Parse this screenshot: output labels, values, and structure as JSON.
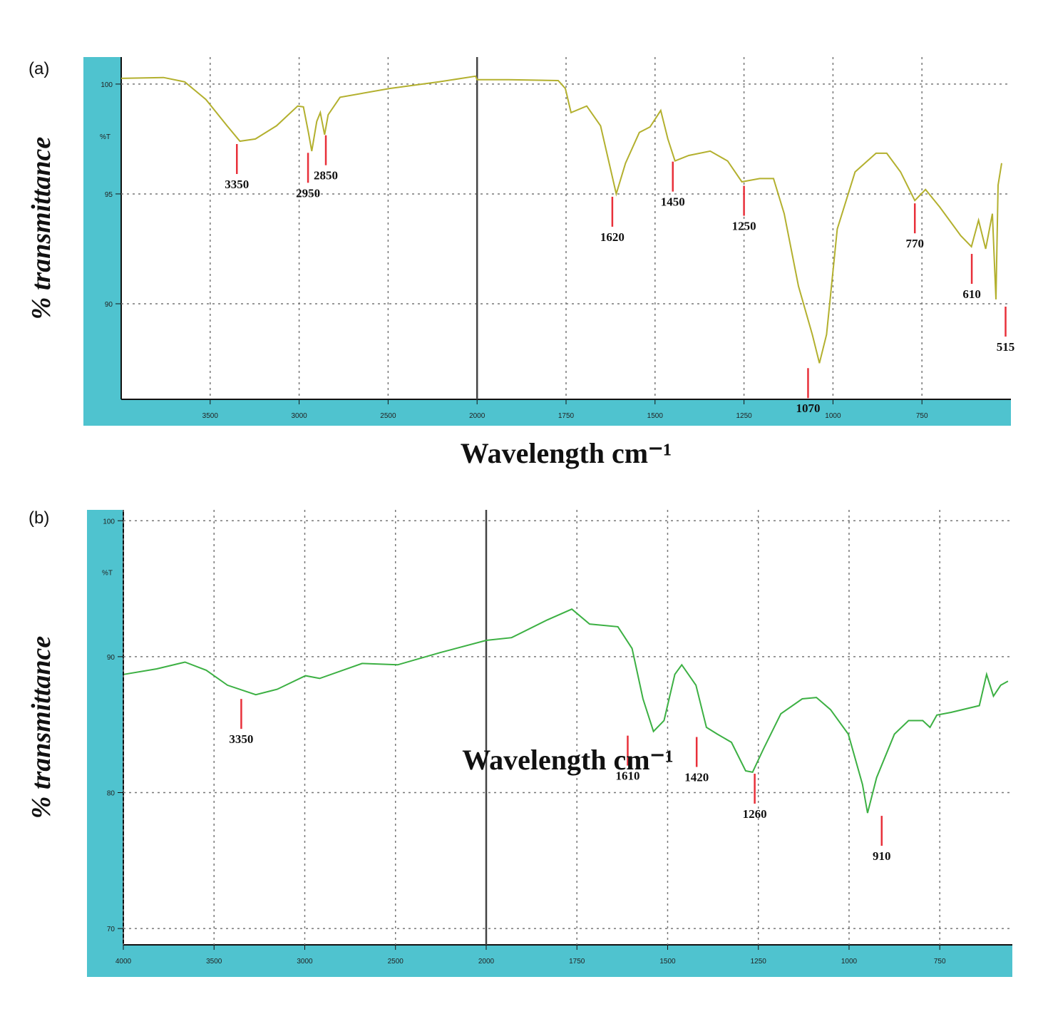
{
  "chart_data": [
    {
      "type": "line",
      "panel_label": "(a)",
      "y_label": "% transmittance",
      "x_label": "Wavelength cm⁻¹",
      "y_unit_label": "%T",
      "x": [
        4000,
        3762,
        3643,
        3524,
        3405,
        3333,
        3246,
        3127,
        3008,
        2976,
        2948,
        2929,
        2901,
        2881,
        2857,
        2837,
        2770,
        2492,
        2214,
        2008,
        2000,
        1911,
        1772,
        1752,
        1736,
        1692,
        1653,
        1609,
        1583,
        1544,
        1514,
        1484,
        1464,
        1444,
        1405,
        1345,
        1296,
        1256,
        1206,
        1167,
        1137,
        1097,
        1058,
        1038,
        1018,
        988,
        938,
        879,
        849,
        810,
        770,
        740,
        700,
        641,
        611,
        591,
        571,
        552,
        542,
        536,
        526
      ],
      "series": [
        {
          "color": "#b3b02e",
          "values": [
            100.26,
            100.3,
            100.1,
            99.3,
            98.1,
            97.4,
            97.5,
            98.1,
            99.0,
            98.96,
            97.8,
            96.95,
            98.3,
            98.7,
            97.7,
            98.6,
            99.4,
            99.8,
            100.1,
            100.36,
            100.2,
            100.2,
            100.16,
            99.8,
            98.7,
            99.0,
            98.1,
            95.0,
            96.4,
            97.8,
            98.05,
            98.8,
            97.5,
            96.5,
            96.75,
            96.95,
            96.5,
            95.55,
            95.7,
            95.7,
            94.1,
            90.8,
            88.6,
            87.3,
            88.6,
            93.4,
            96.0,
            96.85,
            96.85,
            96.0,
            94.7,
            95.2,
            94.4,
            93.1,
            92.6,
            93.8,
            92.5,
            94.1,
            90.2,
            95.4,
            96.4
          ]
        }
      ],
      "xlim": [
        4000,
        500
      ],
      "ylim": [
        85.65,
        101.23
      ],
      "axis_break": 2000,
      "xticks": [
        3500,
        3000,
        2500,
        2000,
        1750,
        1500,
        1250,
        1000,
        750
      ],
      "yticks": [
        100,
        95,
        90
      ],
      "grid": true,
      "peak_color": "#e8303a",
      "peaks": [
        {
          "x": 3350,
          "y": 97.4
        },
        {
          "x": 2950,
          "y": 97.0
        },
        {
          "x": 2850,
          "y": 97.8
        },
        {
          "x": 1620,
          "y": 95.0
        },
        {
          "x": 1450,
          "y": 96.6
        },
        {
          "x": 1250,
          "y": 95.5
        },
        {
          "x": 1070,
          "y": 87.2
        },
        {
          "x": 770,
          "y": 94.7
        },
        {
          "x": 610,
          "y": 92.4
        },
        {
          "x": 515,
          "y": 90.0
        }
      ]
    },
    {
      "type": "line",
      "panel_label": "(b)",
      "y_label": "% transmittance",
      "x_label": "Wavelength cm⁻¹",
      "y_unit_label": "%T",
      "x": [
        3996,
        3816,
        3660,
        3543,
        3426,
        3270,
        3152,
        2996,
        2918,
        2684,
        2488,
        2254,
        2000,
        1930,
        1832,
        1764,
        1715,
        1637,
        1598,
        1568,
        1539,
        1510,
        1480,
        1461,
        1422,
        1393,
        1363,
        1324,
        1285,
        1266,
        1236,
        1188,
        1129,
        1090,
        1051,
        1002,
        963,
        949,
        924,
        875,
        836,
        797,
        777,
        758,
        719,
        641,
        621,
        602,
        582,
        562
      ],
      "series": [
        {
          "color": "#3cb043",
          "values": [
            88.7,
            89.1,
            89.6,
            89.0,
            87.9,
            87.2,
            87.6,
            88.6,
            88.4,
            89.5,
            89.4,
            90.3,
            91.2,
            91.4,
            92.7,
            93.5,
            92.4,
            92.2,
            90.6,
            86.9,
            84.5,
            85.3,
            88.7,
            89.4,
            87.9,
            84.8,
            84.3,
            83.7,
            81.6,
            81.5,
            83.2,
            85.8,
            86.9,
            87.0,
            86.1,
            84.3,
            80.6,
            78.5,
            81.1,
            84.3,
            85.3,
            85.3,
            84.8,
            85.7,
            85.9,
            86.4,
            88.7,
            87.1,
            87.9,
            88.2
          ]
        }
      ],
      "xlim": [
        4000,
        550
      ],
      "ylim": [
        68.8,
        100.8
      ],
      "axis_break": 2000,
      "xticks": [
        4000,
        3500,
        3000,
        2500,
        2000,
        1750,
        1500,
        1250,
        1000,
        750
      ],
      "yticks": [
        100,
        90,
        80,
        70
      ],
      "grid": true,
      "peak_color": "#e8303a",
      "peaks": [
        {
          "x": 3350,
          "y": 87.1
        },
        {
          "x": 1610,
          "y": 84.4
        },
        {
          "x": 1420,
          "y": 84.3
        },
        {
          "x": 1260,
          "y": 81.6
        },
        {
          "x": 910,
          "y": 78.5
        }
      ]
    }
  ]
}
